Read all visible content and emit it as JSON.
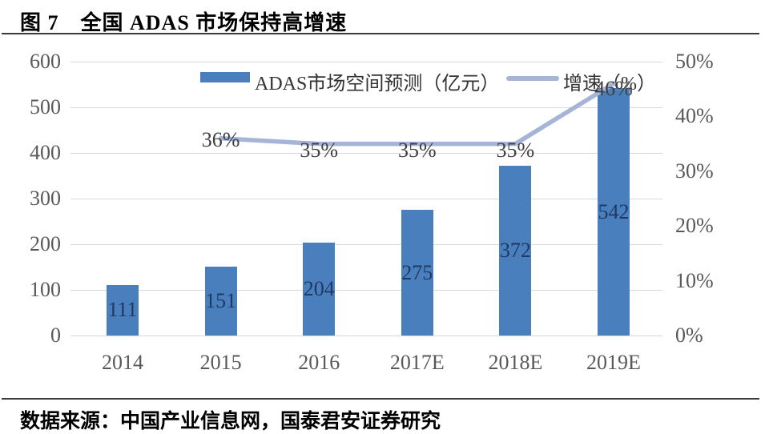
{
  "figure": {
    "title": "图 7　全国 ADAS 市场保持高增速",
    "source": "数据来源：中国产业信息网，国泰君安证券研究"
  },
  "legend": {
    "bar_label": "ADAS市场空间预测（亿元）",
    "line_label": "增速（%）"
  },
  "chart_data": {
    "type": "bar+line",
    "categories": [
      "2014",
      "2015",
      "2016",
      "2017E",
      "2018E",
      "2019E"
    ],
    "series": [
      {
        "name": "ADAS市场空间预测（亿元）",
        "type": "bar",
        "axis": "left",
        "values": [
          111,
          151,
          204,
          275,
          372,
          542
        ]
      },
      {
        "name": "增速（%）",
        "type": "line",
        "axis": "right",
        "values": [
          null,
          36,
          35,
          35,
          35,
          46
        ]
      }
    ],
    "bar_labels": [
      "111",
      "151",
      "204",
      "275",
      "372",
      "542"
    ],
    "line_labels": [
      "36%",
      "35%",
      "35%",
      "35%",
      "46%"
    ],
    "left_axis": {
      "min": 0,
      "max": 600,
      "ticks": [
        "600",
        "500",
        "400",
        "300",
        "200",
        "100",
        "0"
      ]
    },
    "right_axis": {
      "min": 0,
      "max": 50,
      "ticks": [
        "50%",
        "40%",
        "30%",
        "20%",
        "10%",
        "0%"
      ]
    },
    "grid": "horizontal",
    "legend_position": "top",
    "colors": {
      "bar": "#4a7fbe",
      "line": "#a6b4d8",
      "grid": "#d8d8d8",
      "tick_text": "#595959",
      "bar_label_text": "#1f3864",
      "line_label_text": "#3f3f3f"
    }
  }
}
